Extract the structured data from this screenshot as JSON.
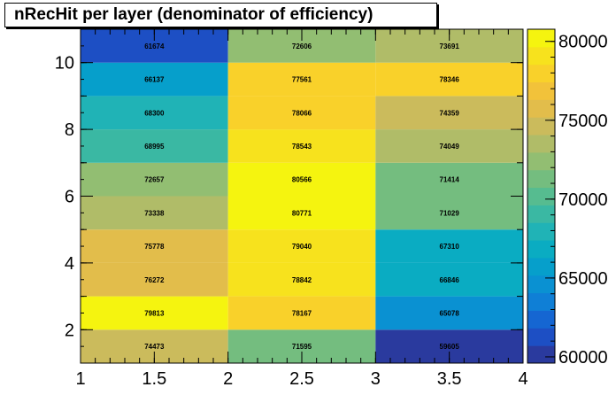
{
  "chart_data": {
    "type": "heatmap",
    "title": "nRecHit per layer (denominator of efficiency)",
    "xlabel": "",
    "ylabel": "",
    "x_edges": [
      1,
      2,
      3,
      4
    ],
    "y_edges": [
      1,
      2,
      3,
      4,
      5,
      6,
      7,
      8,
      9,
      10,
      11
    ],
    "xlim": [
      1,
      4
    ],
    "ylim": [
      1,
      11
    ],
    "x_ticks": [
      1,
      1.5,
      2,
      2.5,
      3,
      3.5,
      4
    ],
    "y_ticks": [
      2,
      4,
      6,
      8,
      10
    ],
    "z_range": [
      59605,
      80771
    ],
    "z_ticks": [
      60000,
      65000,
      70000,
      75000,
      80000
    ],
    "values": [
      [
        74473,
        71595,
        59605
      ],
      [
        79813,
        78167,
        65078
      ],
      [
        76272,
        78842,
        66846
      ],
      [
        75778,
        79040,
        67310
      ],
      [
        73338,
        80771,
        71029
      ],
      [
        72657,
        80566,
        71414
      ],
      [
        68995,
        78543,
        74049
      ],
      [
        68300,
        78066,
        74359
      ],
      [
        66137,
        77561,
        78346
      ],
      [
        61674,
        72606,
        73691
      ]
    ],
    "palette": [
      "#2a3a9e",
      "#1d4fc4",
      "#1566d2",
      "#0f7fd6",
      "#0a91d2",
      "#069fcb",
      "#0aacc2",
      "#20b3b6",
      "#3ab8a3",
      "#56bc90",
      "#74bd7f",
      "#92be72",
      "#b0bc68",
      "#cbbb5c",
      "#e2bd4b",
      "#f2c23a",
      "#f9d12a",
      "#f7e21d",
      "#f5f40f"
    ],
    "show_grid": false,
    "show_cell_text": true
  }
}
